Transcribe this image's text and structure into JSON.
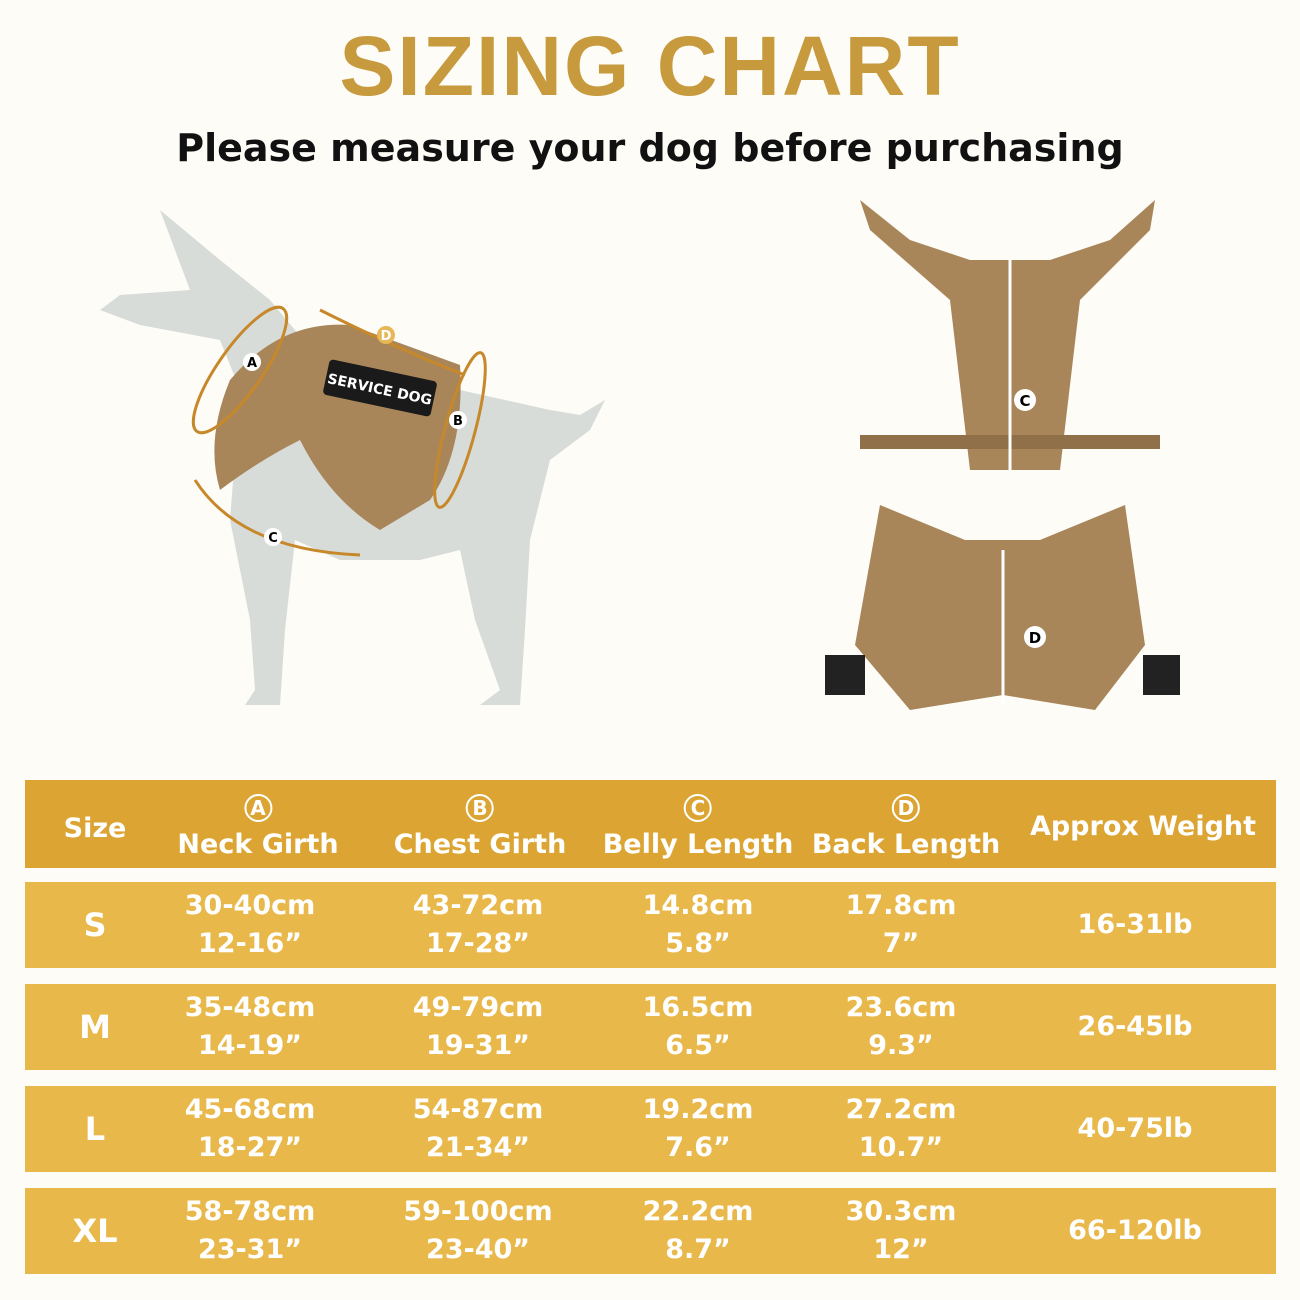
{
  "title": "SIZING CHART",
  "subtitle": "Please measure your dog before purchasing",
  "illustration": {
    "patch_text": "SERVICE DOG",
    "labels": [
      "A",
      "B",
      "C",
      "D"
    ],
    "harness_labels": [
      "C",
      "D"
    ]
  },
  "colors": {
    "title": "#c69a3d",
    "header": "#dca533",
    "row": "#e9b84a",
    "harness": "#a8865a",
    "dog": "#d8dcd8"
  },
  "table": {
    "headers": [
      {
        "mark": "",
        "label": "Size"
      },
      {
        "mark": "A",
        "label": "Neck Girth"
      },
      {
        "mark": "B",
        "label": "Chest Girth"
      },
      {
        "mark": "C",
        "label": "Belly Length"
      },
      {
        "mark": "D",
        "label": "Back Length"
      },
      {
        "mark": "",
        "label": "Approx Weight"
      }
    ],
    "rows": [
      {
        "size": "S",
        "neck": [
          "30-40cm",
          "12-16”"
        ],
        "chest": [
          "43-72cm",
          "17-28”"
        ],
        "belly": [
          "14.8cm",
          "5.8”"
        ],
        "back": [
          "17.8cm",
          "7”"
        ],
        "weight": "16-31lb"
      },
      {
        "size": "M",
        "neck": [
          "35-48cm",
          "14-19”"
        ],
        "chest": [
          "49-79cm",
          "19-31”"
        ],
        "belly": [
          "16.5cm",
          "6.5”"
        ],
        "back": [
          "23.6cm",
          "9.3”"
        ],
        "weight": "26-45lb"
      },
      {
        "size": "L",
        "neck": [
          "45-68cm",
          "18-27”"
        ],
        "chest": [
          "54-87cm",
          "21-34”"
        ],
        "belly": [
          "19.2cm",
          "7.6”"
        ],
        "back": [
          "27.2cm",
          "10.7”"
        ],
        "weight": "40-75lb"
      },
      {
        "size": "XL",
        "neck": [
          "58-78cm",
          "23-31”"
        ],
        "chest": [
          "59-100cm",
          "23-40”"
        ],
        "belly": [
          "22.2cm",
          "8.7”"
        ],
        "back": [
          "30.3cm",
          "12”"
        ],
        "weight": "66-120lb"
      }
    ]
  }
}
